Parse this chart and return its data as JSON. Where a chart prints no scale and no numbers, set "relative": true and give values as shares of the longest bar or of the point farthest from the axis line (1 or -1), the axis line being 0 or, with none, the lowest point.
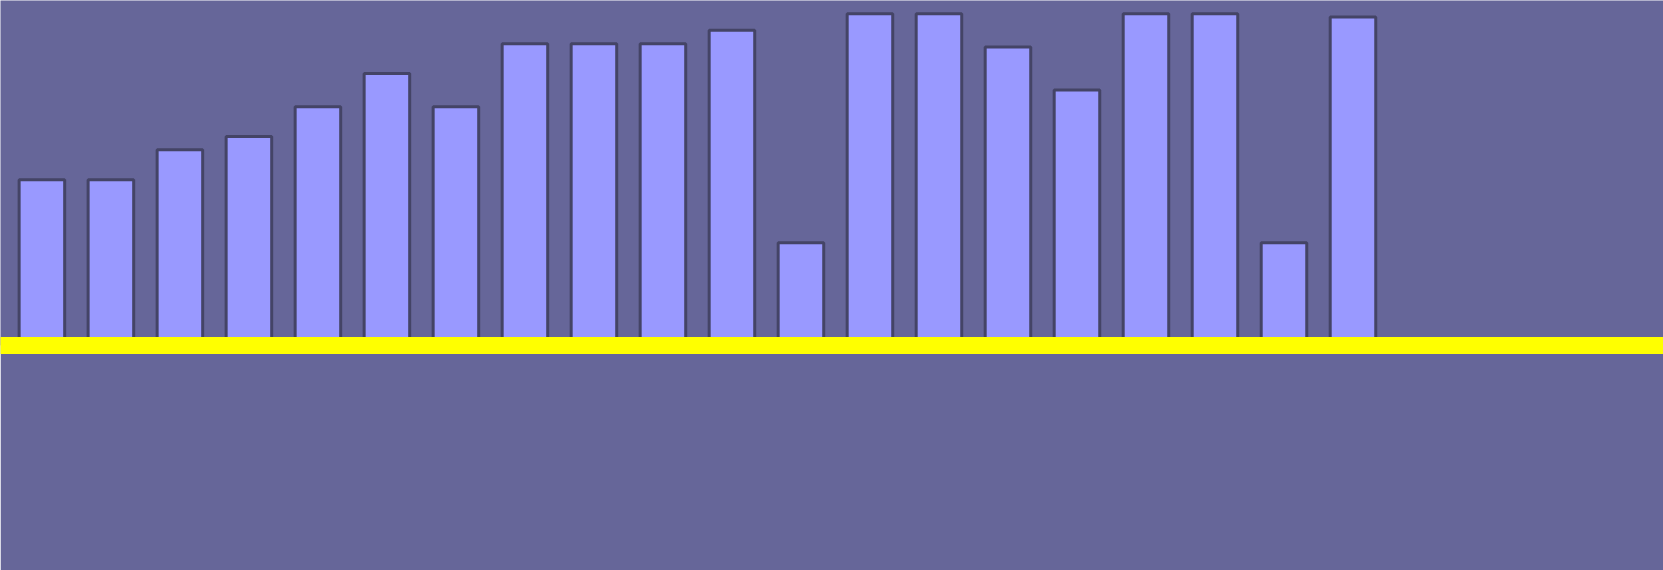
{
  "chart_data": {
    "type": "bar",
    "relative": true,
    "grid": false,
    "categories": [
      null,
      null,
      null,
      null,
      null,
      null,
      null,
      null,
      null,
      null,
      null,
      null,
      null,
      null,
      null,
      null,
      null,
      null,
      null,
      null
    ],
    "series": [
      {
        "color": "#9999ff",
        "values": [
          0.5,
          0.5,
          0.59,
          0.63,
          0.72,
          0.82,
          0.72,
          0.91,
          0.91,
          0.91,
          0.95,
          0.31,
          1,
          1,
          0.9,
          0.77,
          1,
          1,
          0.31,
          0.99
        ]
      }
    ]
  }
}
